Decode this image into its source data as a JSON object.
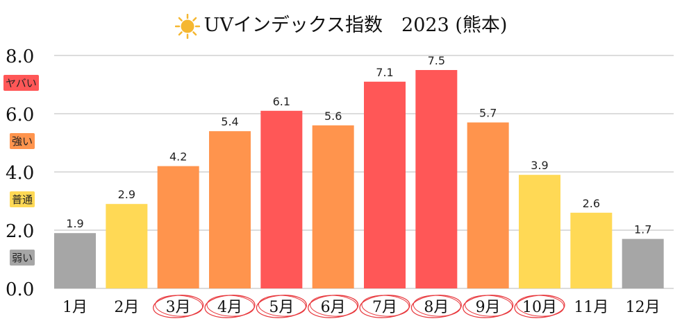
{
  "chart_data": {
    "type": "bar",
    "title": "UVインデックス指数　2023 (熊本)",
    "categories": [
      "1月",
      "2月",
      "3月",
      "4月",
      "5月",
      "6月",
      "7月",
      "8月",
      "9月",
      "10月",
      "11月",
      "12月"
    ],
    "values": [
      1.9,
      2.9,
      4.2,
      5.4,
      6.1,
      5.6,
      7.1,
      7.5,
      5.7,
      3.9,
      2.6,
      1.7
    ],
    "ylim": [
      0,
      8
    ],
    "yticks": [
      "0.0",
      "2.0",
      "4.0",
      "6.0",
      "8.0"
    ],
    "grid": true,
    "circled_categories": [
      "3月",
      "4月",
      "5月",
      "6月",
      "7月",
      "8月",
      "9月",
      "10月"
    ],
    "bands": [
      {
        "label": "ヤバい",
        "color": "#ff5757"
      },
      {
        "label": "強い",
        "color": "#ff944d"
      },
      {
        "label": "普通",
        "color": "#ffd955"
      },
      {
        "label": "弱い",
        "color": "#a6a6a6"
      }
    ]
  }
}
